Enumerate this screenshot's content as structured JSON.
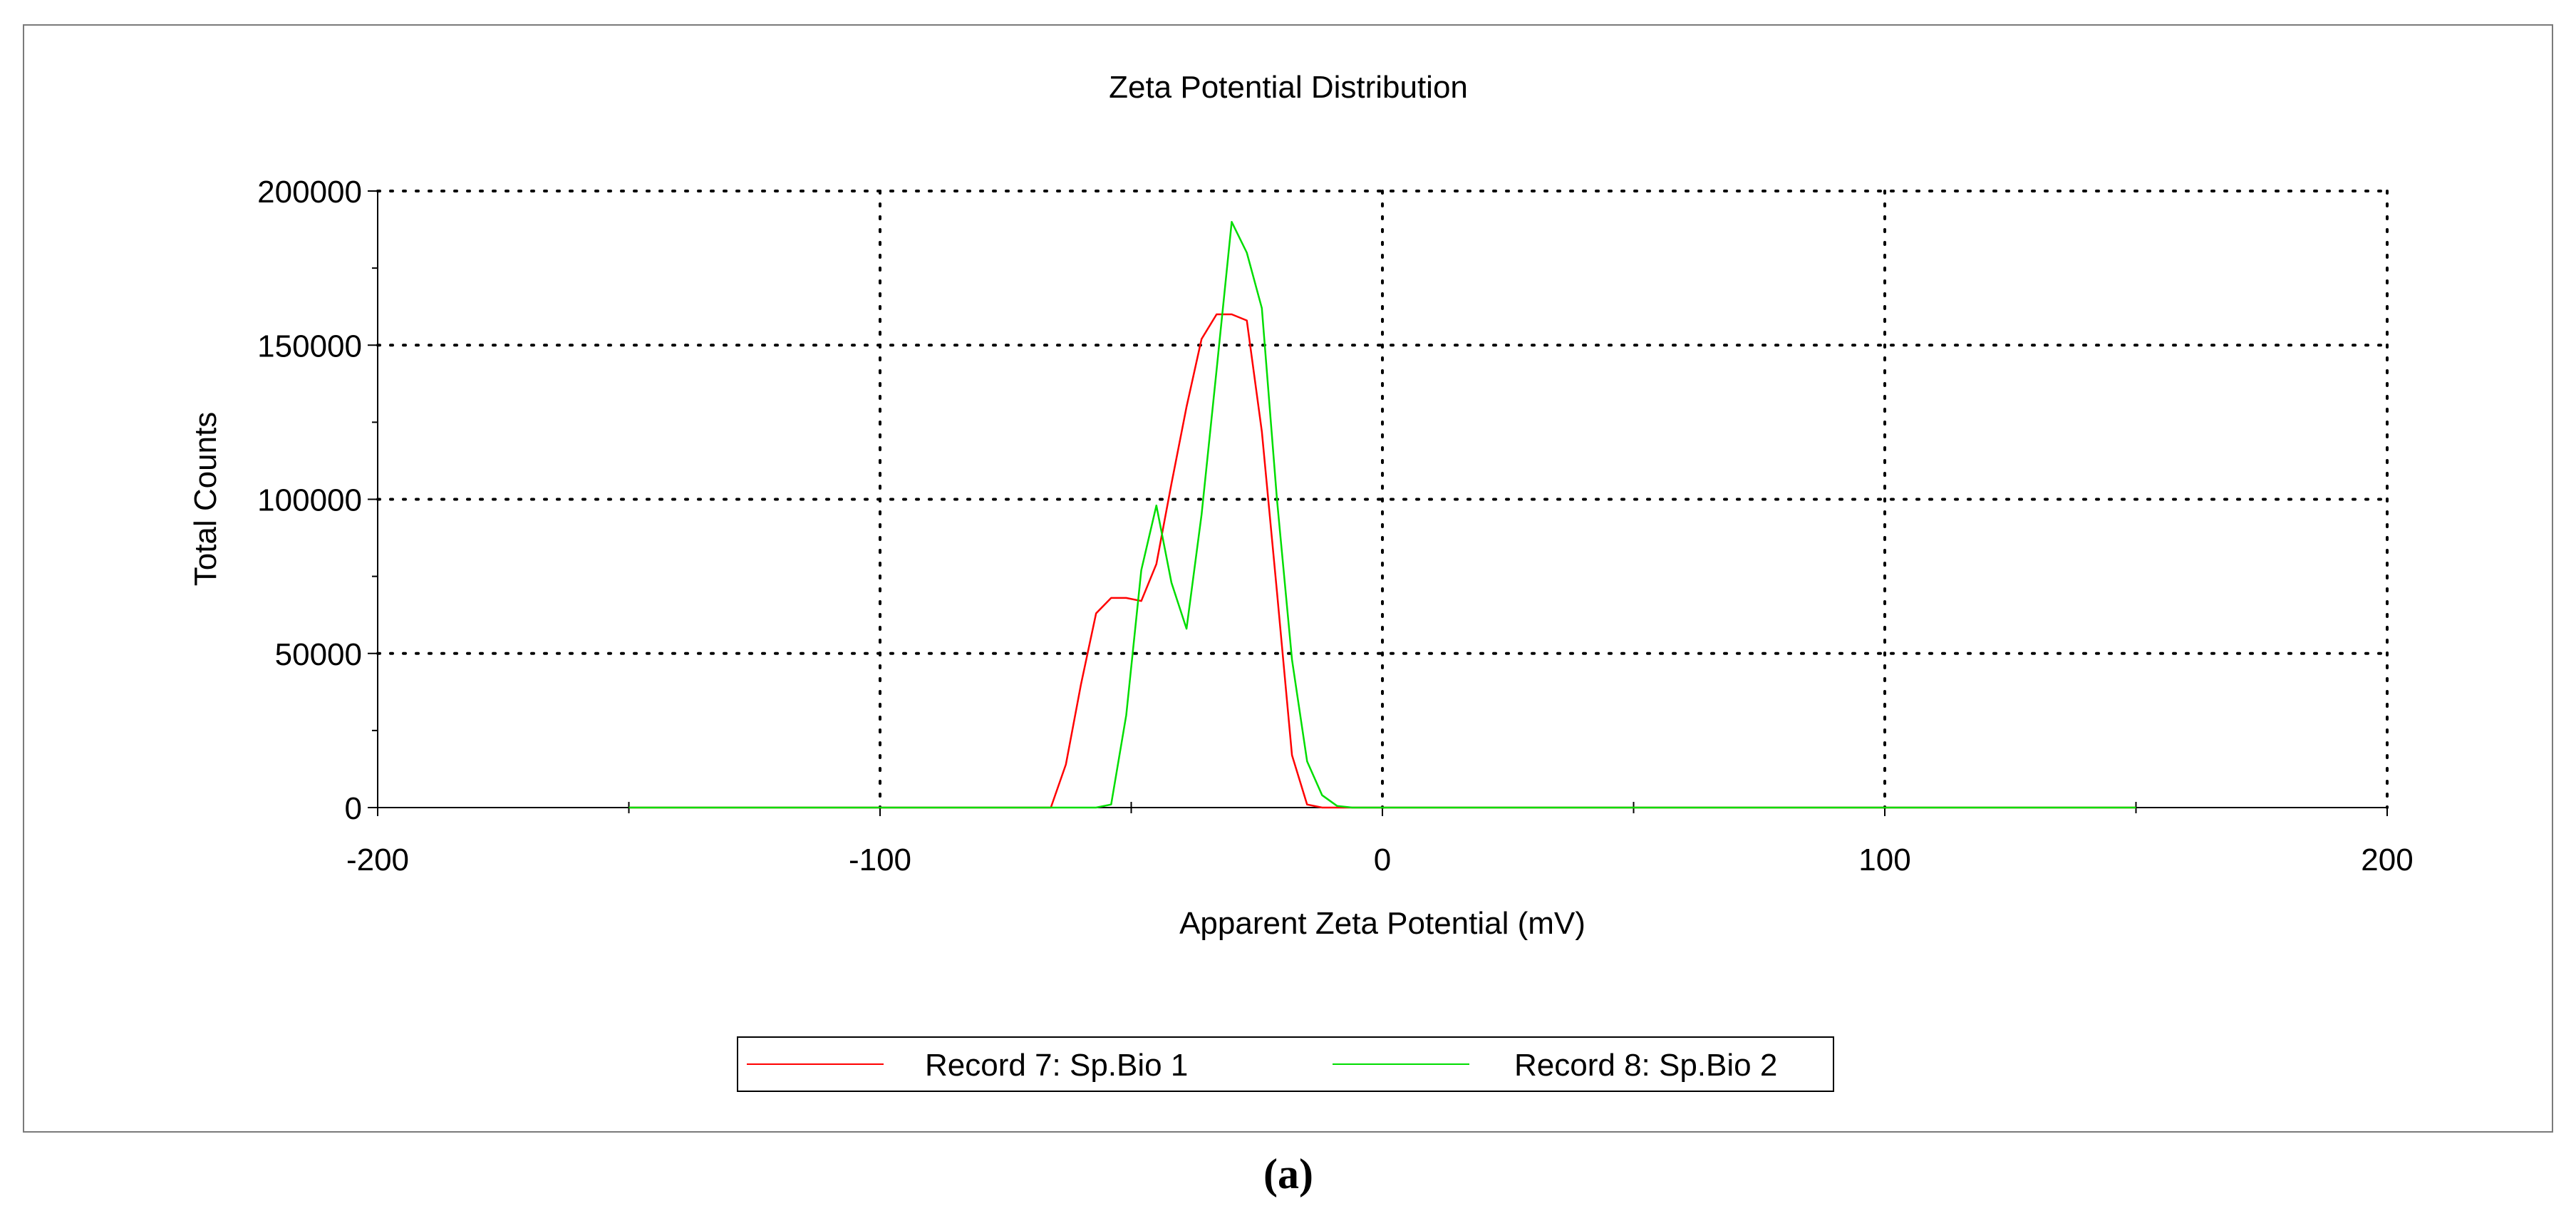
{
  "chart_data": {
    "type": "line",
    "title": "Zeta Potential Distribution",
    "xlabel": "Apparent Zeta Potential (mV)",
    "ylabel": "Total Counts",
    "xlim": [
      -200,
      200
    ],
    "ylim": [
      0,
      200000
    ],
    "x_ticks": [
      -200,
      -100,
      0,
      100,
      200
    ],
    "x_tick_labels": [
      "-200",
      "-100",
      "0",
      "100",
      "200"
    ],
    "y_ticks": [
      0,
      50000,
      100000,
      150000,
      200000
    ],
    "y_tick_labels": [
      "0",
      "50000",
      "100000",
      "150000",
      "200000"
    ],
    "grid": true,
    "legend_position": "bottom-center",
    "series": [
      {
        "name": "Record 7: Sp.Bio 1",
        "color": "#ff0000",
        "x": [
          -150,
          -66,
          -63,
          -60,
          -57,
          -54,
          -51,
          -48,
          -45,
          -42,
          -39,
          -36,
          -33,
          -30,
          -27,
          -24,
          -21,
          -18,
          -15,
          -12,
          -9,
          -6,
          150
        ],
        "y": [
          0,
          0,
          14000,
          40000,
          63000,
          68000,
          68000,
          67000,
          79000,
          105000,
          130000,
          152000,
          160000,
          160000,
          158000,
          122000,
          70000,
          17000,
          1000,
          0,
          0,
          0,
          0
        ]
      },
      {
        "name": "Record 8: Sp.Bio 2",
        "color": "#00dd00",
        "x": [
          -150,
          -57,
          -54,
          -51,
          -48,
          -45,
          -42,
          -39,
          -36,
          -33,
          -30,
          -27,
          -24,
          -21,
          -18,
          -15,
          -12,
          -9,
          -6,
          150
        ],
        "y": [
          0,
          0,
          1000,
          30000,
          77000,
          98000,
          73000,
          58000,
          95000,
          142000,
          190000,
          180000,
          162000,
          100000,
          48000,
          15000,
          4000,
          500,
          0,
          0
        ]
      }
    ]
  },
  "panel_label": "(a)"
}
